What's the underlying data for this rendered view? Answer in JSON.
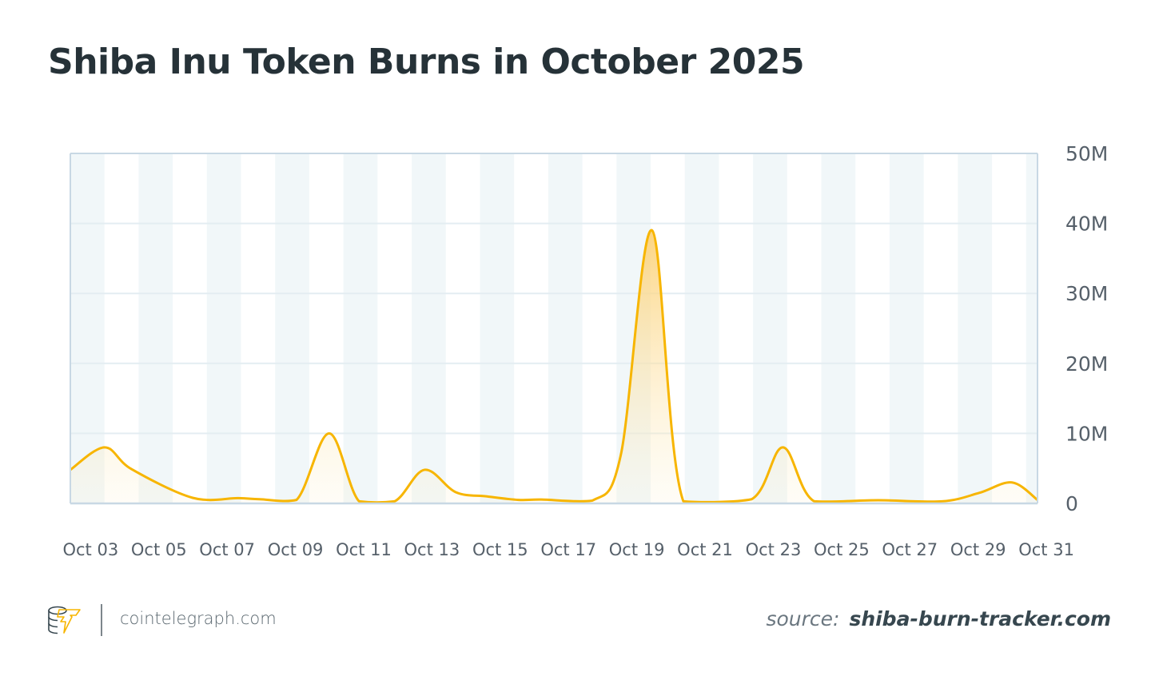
{
  "title": "Shiba Inu Token Burns in October 2025",
  "footer": {
    "site": "cointelegraph.com",
    "source_label": "source:",
    "source_value": "shiba-burn-tracker.com",
    "logo_icon": "cointelegraph-coins-lightning-icon"
  },
  "colors": {
    "line": "#f7b500",
    "fill_top": "#fcd27a",
    "band": "#f1f7f9",
    "grid": "#e4edf2",
    "axis": "#c8d8e4",
    "title": "#263238"
  },
  "chart_data": {
    "type": "area",
    "title": "Shiba Inu Token Burns in October 2025",
    "xlabel": "",
    "ylabel": "",
    "x_axis": "date",
    "xlim": [
      "2025-10-02T21:00",
      "2025-10-31T05:00"
    ],
    "ylim": [
      0,
      50000000
    ],
    "y_ticks": [
      0,
      10000000,
      20000000,
      30000000,
      40000000,
      50000000
    ],
    "y_tick_labels": [
      "0",
      "10M",
      "20M",
      "30M",
      "40M",
      "50M"
    ],
    "y_axis_side": "right",
    "x_tick_labels": [
      "Oct 03",
      "Oct 05",
      "Oct 07",
      "Oct 09",
      "Oct 11",
      "Oct 13",
      "Oct 15",
      "Oct 17",
      "Oct 19",
      "Oct 21",
      "Oct 23",
      "Oct 25",
      "Oct 27",
      "Oct 29",
      "Oct 31"
    ],
    "x_ticks": [
      "2025-10-03",
      "2025-10-05",
      "2025-10-07",
      "2025-10-09",
      "2025-10-11",
      "2025-10-13",
      "2025-10-15",
      "2025-10-17",
      "2025-10-19",
      "2025-10-21",
      "2025-10-23",
      "2025-10-25",
      "2025-10-27",
      "2025-10-29",
      "2025-10-31"
    ],
    "grid": true,
    "alternating_day_bands": true,
    "points": [
      {
        "x": "2025-10-02T21:00",
        "y": 4800000
      },
      {
        "x": "2025-10-03T21:00",
        "y": 8000000
      },
      {
        "x": "2025-10-04T16:00",
        "y": 4900000
      },
      {
        "x": "2025-10-06T11:00",
        "y": 800000
      },
      {
        "x": "2025-10-07T19:00",
        "y": 750000
      },
      {
        "x": "2025-10-08T10:00",
        "y": 600000
      },
      {
        "x": "2025-10-09T12:00",
        "y": 500000
      },
      {
        "x": "2025-10-10T11:00",
        "y": 10000000
      },
      {
        "x": "2025-10-11T08:00",
        "y": 300000
      },
      {
        "x": "2025-10-12T09:00",
        "y": 300000
      },
      {
        "x": "2025-10-13T06:00",
        "y": 4800000
      },
      {
        "x": "2025-10-14T04:00",
        "y": 1600000
      },
      {
        "x": "2025-10-15T02:00",
        "y": 1000000
      },
      {
        "x": "2025-10-16T00:00",
        "y": 500000
      },
      {
        "x": "2025-10-16T16:00",
        "y": 550000
      },
      {
        "x": "2025-10-18T04:00",
        "y": 400000
      },
      {
        "x": "2025-10-19T00:00",
        "y": 6900000
      },
      {
        "x": "2025-10-19T22:00",
        "y": 39000000
      },
      {
        "x": "2025-10-20T20:00",
        "y": 300000
      },
      {
        "x": "2025-10-22T20:00",
        "y": 600000
      },
      {
        "x": "2025-10-23T18:00",
        "y": 8000000
      },
      {
        "x": "2025-10-24T16:00",
        "y": 300000
      },
      {
        "x": "2025-10-26T13:00",
        "y": 450000
      },
      {
        "x": "2025-10-28T10:00",
        "y": 300000
      },
      {
        "x": "2025-10-29T12:00",
        "y": 1500000
      },
      {
        "x": "2025-10-30T11:00",
        "y": 3000000
      },
      {
        "x": "2025-10-31T05:00",
        "y": 500000
      }
    ]
  }
}
